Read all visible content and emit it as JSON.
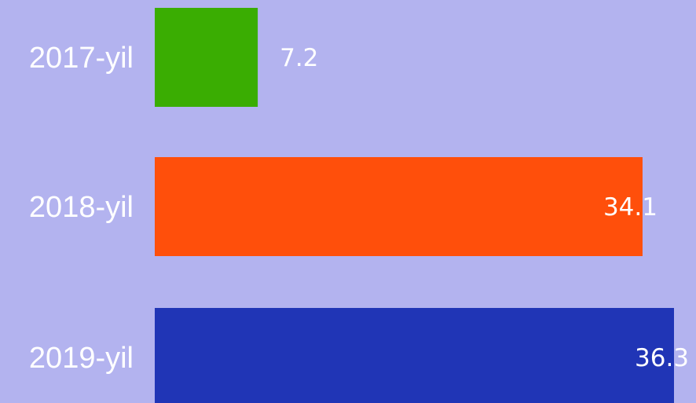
{
  "chart_data": {
    "type": "bar",
    "orientation": "horizontal",
    "categories": [
      "2017-yil",
      "2018-yil",
      "2019-yil"
    ],
    "values": [
      7.2,
      34.1,
      36.3
    ],
    "value_labels": [
      "7.2",
      "34.1",
      "36.3"
    ],
    "colors": [
      "#3aad02",
      "#ff4f0b",
      "#2035b6"
    ],
    "background": "#b3b3ef",
    "title": "",
    "xlabel": "",
    "ylabel": "",
    "xlim": [
      0,
      36.3
    ],
    "grid": false,
    "legend": "none"
  }
}
